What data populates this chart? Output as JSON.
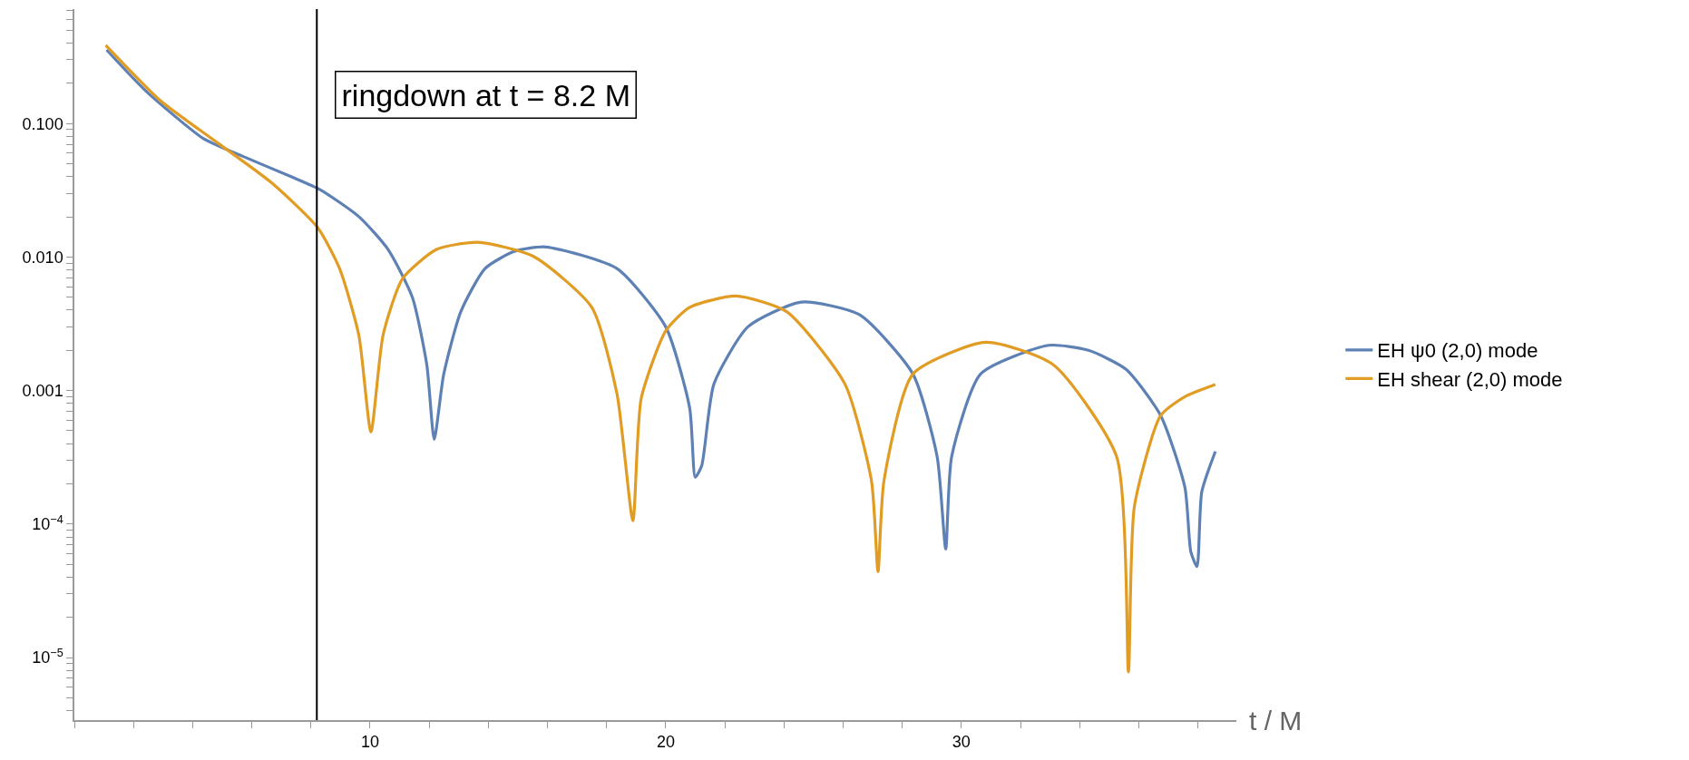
{
  "chart_data": {
    "type": "line",
    "xlabel": "t / M",
    "log": "y",
    "legend": "right",
    "line_style": "solid",
    "marker": "none",
    "xlim": [
      0,
      39.3
    ],
    "xticks": [
      {
        "value": 0,
        "label": null
      },
      {
        "value": 2,
        "label": null
      },
      {
        "value": 4,
        "label": null
      },
      {
        "value": 6,
        "label": null
      },
      {
        "value": 8,
        "label": null
      },
      10,
      {
        "value": 12,
        "label": null
      },
      {
        "value": 14,
        "label": null
      },
      {
        "value": 16,
        "label": null
      },
      {
        "value": 18,
        "label": null
      },
      20,
      {
        "value": 22,
        "label": null
      },
      {
        "value": 24,
        "label": null
      },
      {
        "value": 26,
        "label": null
      },
      {
        "value": 28,
        "label": null
      },
      30,
      {
        "value": 32,
        "label": null
      },
      {
        "value": 34,
        "label": null
      },
      {
        "value": 36,
        "label": null
      },
      {
        "value": 38,
        "label": null
      }
    ],
    "ylim": [
      3.4e-06,
      0.72
    ],
    "yticks": [
      {
        "value": 4e-06,
        "label": null
      },
      {
        "value": 5e-06,
        "label": null
      },
      {
        "value": 6e-06,
        "label": null
      },
      {
        "value": 7e-06,
        "label": null
      },
      {
        "value": 8e-06,
        "label": null
      },
      {
        "value": 9e-06,
        "label": null
      },
      {
        "value": 1e-05,
        "label": "10$^{−5}$"
      },
      {
        "value": 2e-05,
        "label": null
      },
      {
        "value": 3e-05,
        "label": null
      },
      {
        "value": 4e-05,
        "label": null
      },
      {
        "value": 5e-05,
        "label": null
      },
      {
        "value": 6e-05,
        "label": null
      },
      {
        "value": 7e-05,
        "label": null
      },
      {
        "value": 8e-05,
        "label": null
      },
      {
        "value": 9e-05,
        "label": null
      },
      {
        "value": 0.0001,
        "label": "10$^{−4}$"
      },
      {
        "value": 0.0002,
        "label": null
      },
      {
        "value": 0.0003,
        "label": null
      },
      {
        "value": 0.0004,
        "label": null
      },
      {
        "value": 0.0005,
        "label": null
      },
      {
        "value": 0.0006,
        "label": null
      },
      {
        "value": 0.0007,
        "label": null
      },
      {
        "value": 0.0008,
        "label": null
      },
      {
        "value": 0.0009,
        "label": null
      },
      {
        "value": 0.001,
        "label": "0.001"
      },
      {
        "value": 0.002,
        "label": null
      },
      {
        "value": 0.003,
        "label": null
      },
      {
        "value": 0.004,
        "label": null
      },
      {
        "value": 0.005,
        "label": null
      },
      {
        "value": 0.006,
        "label": null
      },
      {
        "value": 0.007,
        "label": null
      },
      {
        "value": 0.008,
        "label": null
      },
      {
        "value": 0.009,
        "label": null
      },
      {
        "value": 0.01,
        "label": "0.010"
      },
      {
        "value": 0.02,
        "label": null
      },
      {
        "value": 0.03,
        "label": null
      },
      {
        "value": 0.04,
        "label": null
      },
      {
        "value": 0.05,
        "label": null
      },
      {
        "value": 0.06,
        "label": null
      },
      {
        "value": 0.07,
        "label": null
      },
      {
        "value": 0.08,
        "label": null
      },
      {
        "value": 0.09,
        "label": null
      },
      {
        "value": 0.1,
        "label": "0.100"
      },
      {
        "value": 0.2,
        "label": null
      },
      {
        "value": 0.3,
        "label": null
      },
      {
        "value": 0.4,
        "label": null
      },
      {
        "value": 0.5,
        "label": null
      },
      {
        "value": 0.6,
        "label": null
      },
      {
        "value": 0.7,
        "label": null
      }
    ],
    "ref_lines": [
      {
        "axis": "x",
        "value": 8.2,
        "label": "ringdown at t = 8.2 M",
        "color": "#000000",
        "line_style": "solid"
      }
    ],
    "series": [
      {
        "name": "EH ψ0 (2,0) mode",
        "color": "#5e81b5",
        "x": [
          1.09,
          2.41,
          4.37,
          5.68,
          7.33,
          8.31,
          9.63,
          10.61,
          11.43,
          11.92,
          12.17,
          12.49,
          13.07,
          13.89,
          14.87,
          15.94,
          18.35,
          20.0,
          20.81,
          21.0,
          21.22,
          21.63,
          22.78,
          24.58,
          26.55,
          28.36,
          29.18,
          29.47,
          29.67,
          30.65,
          32.95,
          34.3,
          35.57,
          36.74,
          37.56,
          37.76,
          37.97,
          38.13,
          38.59
        ],
        "values": [
          0.356,
          0.176,
          0.077,
          0.057,
          0.04,
          0.032,
          0.02,
          0.0114,
          0.005,
          0.00156,
          0.00043,
          0.00132,
          0.0039,
          0.0082,
          0.011,
          0.0119,
          0.0082,
          0.003,
          0.00074,
          0.000224,
          0.000275,
          0.00112,
          0.003,
          0.0046,
          0.0037,
          0.00133,
          0.00032,
          6.5e-05,
          0.00032,
          0.00133,
          0.00218,
          0.002,
          0.00144,
          0.00065,
          0.000188,
          6.2e-05,
          4.8e-05,
          0.000174,
          0.00035
        ]
      },
      {
        "name": "EH shear (2,0) mode",
        "color": "#e19c24",
        "x": [
          1.06,
          2.9,
          4.87,
          6.67,
          8.23,
          8.97,
          9.62,
          10.03,
          10.44,
          11.1,
          12.25,
          13.64,
          15.53,
          17.5,
          18.35,
          18.89,
          19.17,
          20.0,
          20.81,
          22.37,
          24.09,
          26.06,
          26.96,
          27.18,
          27.38,
          28.36,
          30.82,
          33.11,
          35.25,
          35.65,
          35.85,
          36.74,
          37.56,
          38.59
        ],
        "values": [
          0.386,
          0.149,
          0.071,
          0.036,
          0.0166,
          0.0082,
          0.0026,
          0.00049,
          0.0026,
          0.0069,
          0.0114,
          0.0129,
          0.0101,
          0.0042,
          0.00095,
          0.000106,
          0.00087,
          0.0028,
          0.0042,
          0.0051,
          0.0039,
          0.00112,
          0.00021,
          4.4e-05,
          0.00021,
          0.00133,
          0.0023,
          0.00156,
          0.00032,
          7.8e-06,
          0.000135,
          0.00065,
          0.0009,
          0.00111
        ]
      }
    ]
  }
}
